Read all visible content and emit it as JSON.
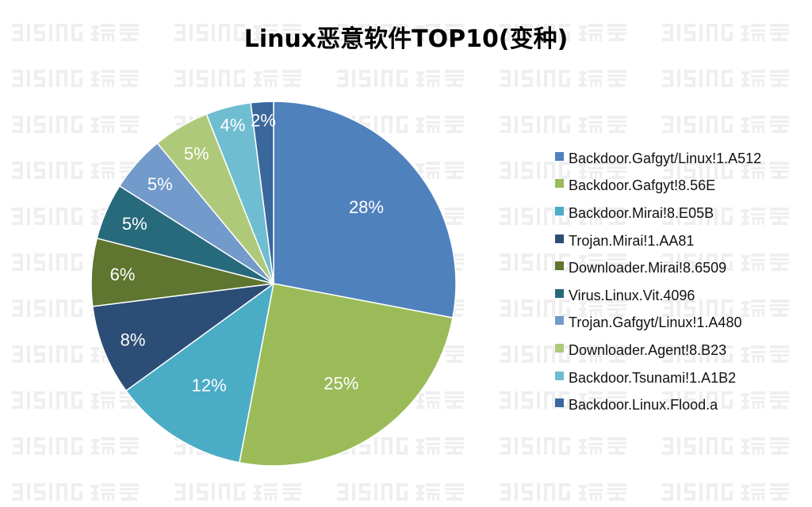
{
  "watermark": "RISING 瑞星",
  "chart_data": {
    "type": "pie",
    "title": "Linux恶意软件TOP10(变种)",
    "start": "top",
    "direction": "clockwise",
    "legend_position": "right",
    "slices": [
      {
        "name": "Backdoor.Gafgyt/Linux!1.A512",
        "value": 28,
        "label": "28%",
        "color": "#4f81bd"
      },
      {
        "name": "Backdoor.Gafgyt!8.56E",
        "value": 25,
        "label": "25%",
        "color": "#9bbb59"
      },
      {
        "name": "Backdoor.Mirai!8.E05B",
        "value": 12,
        "label": "12%",
        "color": "#4bacc6"
      },
      {
        "name": "Trojan.Mirai!1.AA81",
        "value": 8,
        "label": "8%",
        "color": "#2c4d75"
      },
      {
        "name": "Downloader.Mirai!8.6509",
        "value": 6,
        "label": "6%",
        "color": "#5f7530"
      },
      {
        "name": "Virus.Linux.Vit.4096",
        "value": 5,
        "label": "5%",
        "color": "#276a7c"
      },
      {
        "name": "Trojan.Gafgyt/Linux!1.A480",
        "value": 5,
        "label": "5%",
        "color": "#729aca"
      },
      {
        "name": "Downloader.Agent!8.B23",
        "value": 5,
        "label": "5%",
        "color": "#afc97a"
      },
      {
        "name": "Backdoor.Tsunami!1.A1B2",
        "value": 4,
        "label": "4%",
        "color": "#6fbdd1"
      },
      {
        "name": "Backdoor.Linux.Flood.a",
        "value": 2,
        "label": "2%",
        "color": "#3a679c"
      }
    ]
  }
}
